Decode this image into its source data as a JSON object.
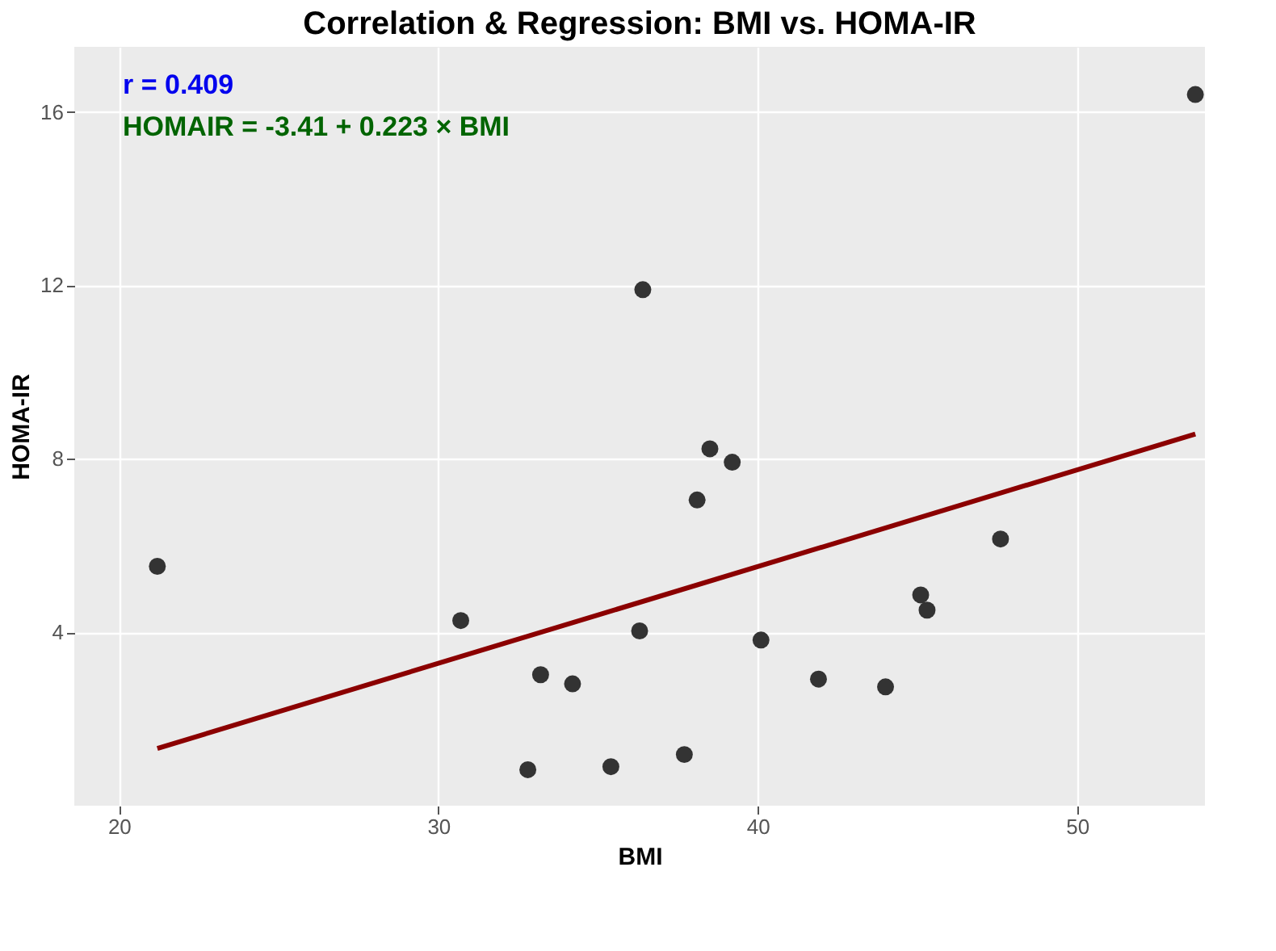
{
  "chart_data": {
    "type": "scatter",
    "title": "Correlation & Regression: BMI vs. HOMA-IR",
    "xlabel": "BMI",
    "ylabel": "HOMA-IR",
    "annotations": [
      "r = 0.409",
      "HOMAIR = -3.41 + 0.223 × BMI"
    ],
    "xlim": [
      18.6,
      54.0
    ],
    "ylim": [
      0,
      17.5
    ],
    "xticks": [
      20,
      30,
      40,
      50
    ],
    "yticks": [
      4,
      8,
      12,
      16
    ],
    "grid": true,
    "series": [
      {
        "marker": "circle",
        "color": "#333333",
        "x": [
          21.2,
          30.7,
          32.8,
          33.2,
          34.2,
          35.4,
          36.3,
          36.4,
          37.7,
          38.1,
          38.5,
          39.2,
          40.1,
          41.9,
          44.0,
          45.1,
          45.3,
          47.6,
          53.7
        ],
        "values": [
          5.52,
          4.27,
          0.83,
          3.02,
          2.81,
          0.9,
          4.03,
          11.9,
          1.18,
          7.05,
          8.23,
          7.92,
          3.82,
          2.92,
          2.74,
          4.86,
          4.51,
          6.15,
          16.4
        ]
      },
      {
        "type": "line",
        "color": "#8b0000",
        "x": [
          21.2,
          53.7
        ],
        "values": [
          1.32,
          8.57
        ]
      }
    ]
  }
}
